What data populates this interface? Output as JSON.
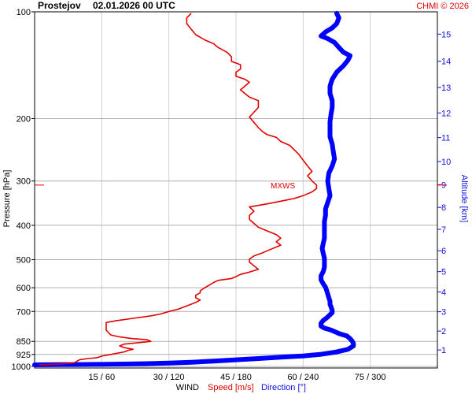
{
  "header": {
    "station": "Prostejov",
    "datetime": "02.01.2026 00 UTC",
    "credit": "CHMI © 2026"
  },
  "axes": {
    "pressure_label": "Pressure [hPa]",
    "altitude_label": "Altitude [km]",
    "pressure_ticks": [
      "100",
      "200",
      "300",
      "400",
      "500",
      "600",
      "700",
      "850",
      "925",
      "1000"
    ],
    "altitude_ticks": [
      "1",
      "2",
      "3",
      "4",
      "5",
      "6",
      "7",
      "8",
      "9",
      "10",
      "11",
      "12",
      "13",
      "14",
      "15"
    ],
    "x_ticks": [
      "15 / 60",
      "30 / 120",
      "45 / 180",
      "60 / 240",
      "75 / 300"
    ],
    "x_label_wind": "WIND",
    "x_label_speed": "Speed [m/s]",
    "x_label_direction": "Direction [°]"
  },
  "annotation": {
    "mxws_label": "MXWS",
    "mxws_pressure": 308
  },
  "colors": {
    "speed": "#e00000",
    "direction": "#0000ff",
    "altitude_axis": "#1010e0",
    "grid": "#b0b0b0"
  },
  "chart_data": {
    "type": "line",
    "y_scale": "log-pressure",
    "ylim": [
      1000,
      100
    ],
    "grid": true,
    "x_ranges": {
      "speed_ms": [
        0,
        90
      ],
      "direction_deg": [
        0,
        360
      ]
    },
    "series": [
      {
        "name": "Speed [m/s]",
        "x_units": "m/s",
        "points": [
          [
            1,
            990
          ],
          [
            5,
            985
          ],
          [
            8,
            980
          ],
          [
            9,
            975
          ],
          [
            10,
            958
          ],
          [
            12,
            950
          ],
          [
            14,
            945
          ],
          [
            15,
            935
          ],
          [
            17,
            925
          ],
          [
            20,
            910
          ],
          [
            21,
            900
          ],
          [
            22,
            895
          ],
          [
            20,
            885
          ],
          [
            19,
            875
          ],
          [
            20,
            865
          ],
          [
            24,
            855
          ],
          [
            26,
            850
          ],
          [
            25,
            840
          ],
          [
            22,
            835
          ],
          [
            19,
            826
          ],
          [
            17,
            815
          ],
          [
            16,
            790
          ],
          [
            16,
            765
          ],
          [
            16,
            752
          ],
          [
            18,
            744
          ],
          [
            22,
            732
          ],
          [
            26,
            720
          ],
          [
            28,
            712
          ],
          [
            30,
            700
          ],
          [
            32,
            690
          ],
          [
            34,
            675
          ],
          [
            36,
            660
          ],
          [
            37,
            650
          ],
          [
            36,
            640
          ],
          [
            36,
            630
          ],
          [
            37,
            620
          ],
          [
            37,
            612
          ],
          [
            38,
            600
          ],
          [
            39,
            590
          ],
          [
            40,
            580
          ],
          [
            41,
            572
          ],
          [
            44,
            565
          ],
          [
            45,
            558
          ],
          [
            46,
            550
          ],
          [
            48,
            542
          ],
          [
            50,
            532
          ],
          [
            49,
            520
          ],
          [
            48,
            508
          ],
          [
            48,
            498
          ],
          [
            49,
            488
          ],
          [
            51,
            478
          ],
          [
            53,
            466
          ],
          [
            55,
            455
          ],
          [
            54,
            445
          ],
          [
            55,
            435
          ],
          [
            54,
            425
          ],
          [
            52,
            415
          ],
          [
            50,
            405
          ],
          [
            49,
            395
          ],
          [
            48,
            385
          ],
          [
            48,
            375
          ],
          [
            49,
            365
          ],
          [
            48,
            355
          ],
          [
            52,
            348
          ],
          [
            55,
            342
          ],
          [
            58,
            336
          ],
          [
            60,
            330
          ],
          [
            62,
            322
          ],
          [
            63,
            315
          ],
          [
            63,
            308
          ],
          [
            62,
            300
          ],
          [
            61,
            290
          ],
          [
            62,
            282
          ],
          [
            61,
            272
          ],
          [
            60,
            262
          ],
          [
            59,
            252
          ],
          [
            58,
            245
          ],
          [
            57,
            238
          ],
          [
            55,
            232
          ],
          [
            54,
            226
          ],
          [
            52,
            222
          ],
          [
            51,
            218
          ],
          [
            50,
            212
          ],
          [
            49,
            205
          ],
          [
            48,
            198
          ],
          [
            49,
            192
          ],
          [
            50,
            186
          ],
          [
            50,
            182
          ],
          [
            50,
            178
          ],
          [
            48,
            174
          ],
          [
            47,
            170
          ],
          [
            46,
            166
          ],
          [
            47,
            162
          ],
          [
            48,
            158
          ],
          [
            47,
            155
          ],
          [
            45,
            152
          ],
          [
            45,
            148
          ],
          [
            46,
            145
          ],
          [
            46,
            141
          ],
          [
            44,
            138
          ],
          [
            44,
            134
          ],
          [
            43,
            130
          ],
          [
            41,
            126
          ],
          [
            40,
            123
          ],
          [
            38,
            120
          ],
          [
            36,
            116
          ],
          [
            35,
            112
          ],
          [
            34,
            108
          ],
          [
            34,
            104
          ],
          [
            35,
            101
          ]
        ]
      },
      {
        "name": "Direction [°]",
        "x_units": "deg",
        "points": [
          [
            0,
            990
          ],
          [
            20,
            989
          ],
          [
            40,
            988
          ],
          [
            60,
            987
          ],
          [
            80,
            985
          ],
          [
            100,
            982
          ],
          [
            120,
            978
          ],
          [
            140,
            973
          ],
          [
            160,
            966
          ],
          [
            180,
            958
          ],
          [
            200,
            950
          ],
          [
            220,
            942
          ],
          [
            240,
            934
          ],
          [
            255,
            925
          ],
          [
            270,
            910
          ],
          [
            280,
            895
          ],
          [
            285,
            875
          ],
          [
            285,
            862
          ],
          [
            284,
            850
          ],
          [
            282,
            835
          ],
          [
            279,
            820
          ],
          [
            273,
            810
          ],
          [
            269,
            800
          ],
          [
            265,
            790
          ],
          [
            259,
            780
          ],
          [
            256,
            770
          ],
          [
            256,
            755
          ],
          [
            258,
            742
          ],
          [
            261,
            730
          ],
          [
            264,
            715
          ],
          [
            266,
            705
          ],
          [
            266,
            695
          ],
          [
            265,
            680
          ],
          [
            264,
            668
          ],
          [
            264,
            655
          ],
          [
            263,
            640
          ],
          [
            262,
            625
          ],
          [
            261,
            610
          ],
          [
            260,
            598
          ],
          [
            258,
            585
          ],
          [
            256,
            570
          ],
          [
            256,
            555
          ],
          [
            258,
            540
          ],
          [
            259,
            525
          ],
          [
            259,
            510
          ],
          [
            259,
            495
          ],
          [
            258,
            480
          ],
          [
            257,
            465
          ],
          [
            258,
            450
          ],
          [
            259,
            435
          ],
          [
            259,
            420
          ],
          [
            259,
            405
          ],
          [
            259,
            390
          ],
          [
            260,
            375
          ],
          [
            260,
            360
          ],
          [
            262,
            345
          ],
          [
            264,
            330
          ],
          [
            263,
            315
          ],
          [
            262,
            300
          ],
          [
            263,
            285
          ],
          [
            266,
            272
          ],
          [
            268,
            260
          ],
          [
            267,
            248
          ],
          [
            266,
            236
          ],
          [
            264,
            225
          ],
          [
            264,
            214
          ],
          [
            264,
            204
          ],
          [
            265,
            194
          ],
          [
            266,
            186
          ],
          [
            266,
            178
          ],
          [
            264,
            170
          ],
          [
            264,
            162
          ],
          [
            266,
            155
          ],
          [
            270,
            148
          ],
          [
            276,
            142
          ],
          [
            280,
            137
          ],
          [
            282,
            133
          ],
          [
            276,
            130
          ],
          [
            272,
            126
          ],
          [
            268,
            122
          ],
          [
            262,
            119
          ],
          [
            256,
            117
          ],
          [
            260,
            114
          ],
          [
            266,
            111
          ],
          [
            270,
            108
          ],
          [
            272,
            104
          ],
          [
            270,
            101
          ]
        ]
      }
    ]
  }
}
